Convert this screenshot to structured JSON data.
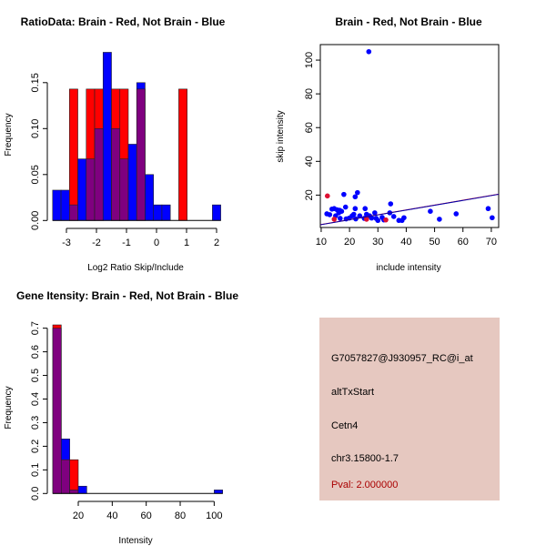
{
  "chart_data": [
    {
      "type": "histogram-overlay",
      "title": "RatioData: Brain - Red, Not Brain - Blue",
      "xlabel": "Log2 Ratio Skip/Include",
      "ylabel": "Frequency",
      "bin_start": -3.46,
      "bin_width": 0.28,
      "series": [
        {
          "name": "Not Brain",
          "color": "#0000ff",
          "values": [
            0.033,
            0.033,
            0.017,
            0.067,
            0.067,
            0.1,
            0.183,
            0.1,
            0.067,
            0.083,
            0.15,
            0.05,
            0.017,
            0.017,
            0,
            0,
            0,
            0,
            0,
            0.017
          ]
        },
        {
          "name": "Brain",
          "color": "#ff0000",
          "values": [
            0,
            0,
            0.143,
            0,
            0.143,
            0.143,
            0,
            0.143,
            0.143,
            0,
            0.143,
            0,
            0,
            0,
            0,
            0.143,
            0,
            0,
            0,
            0
          ]
        }
      ],
      "overlap_color": "#7f007f",
      "xticks": [
        "-3",
        "-2",
        "-1",
        "0",
        "1",
        "2"
      ],
      "xtick_values": [
        -3,
        -2,
        -1,
        0,
        1,
        2
      ],
      "yticks": [
        "0.00",
        "0.05",
        "0.10",
        "0.15"
      ],
      "ytick_values": [
        0,
        0.05,
        0.1,
        0.15
      ]
    },
    {
      "type": "scatter",
      "title": "Brain - Red, Not Brain - Blue",
      "xlabel": "include intensity",
      "ylabel": "skip intensity",
      "xlim": [
        9.7,
        72.6
      ],
      "ylim": [
        0.8,
        109.2
      ],
      "xticks": [
        "10",
        "20",
        "30",
        "40",
        "50",
        "60",
        "70"
      ],
      "xtick_values": [
        10,
        20,
        30,
        40,
        50,
        60,
        70
      ],
      "yticks": [
        "20",
        "40",
        "60",
        "80",
        "100"
      ],
      "ytick_values": [
        20,
        40,
        60,
        80,
        100
      ],
      "series": [
        {
          "name": "Not Brain",
          "color": "#0000ff",
          "points": [
            [
              26.8,
              105
            ],
            [
              18,
              20.4
            ],
            [
              22.8,
              21.5
            ],
            [
              22,
              19
            ],
            [
              18.6,
              12.9
            ],
            [
              34.5,
              14.8
            ],
            [
              25.5,
              12
            ],
            [
              22,
              12
            ],
            [
              12,
              8.9
            ],
            [
              13,
              8.4
            ],
            [
              13.8,
              11.7
            ],
            [
              14.6,
              12
            ],
            [
              15.6,
              11.3
            ],
            [
              16.5,
              11
            ],
            [
              17.2,
              10.4
            ],
            [
              15.1,
              7.7
            ],
            [
              16.2,
              9.5
            ],
            [
              16.7,
              6.2
            ],
            [
              18.8,
              5.9
            ],
            [
              19.9,
              6.4
            ],
            [
              20.9,
              7.7
            ],
            [
              21.5,
              8.6
            ],
            [
              22.2,
              5.9
            ],
            [
              23.6,
              7.7
            ],
            [
              25.2,
              6.2
            ],
            [
              26,
              8.6
            ],
            [
              27.1,
              7.7
            ],
            [
              27.8,
              6.4
            ],
            [
              28.9,
              9.5
            ],
            [
              29.4,
              6.2
            ],
            [
              30,
              5
            ],
            [
              31.5,
              6.8
            ],
            [
              32.1,
              5.3
            ],
            [
              34.2,
              9.5
            ],
            [
              35.6,
              7.3
            ],
            [
              37.4,
              5
            ],
            [
              38.5,
              5
            ],
            [
              39.2,
              6.6
            ],
            [
              48.5,
              10.4
            ],
            [
              51.7,
              5.7
            ],
            [
              57.6,
              8.9
            ],
            [
              68.9,
              12
            ],
            [
              70.3,
              6.6
            ]
          ]
        },
        {
          "name": "Brain",
          "color": "#dd1133",
          "points": [
            [
              12.2,
              19.5
            ],
            [
              14.6,
              5.7
            ],
            [
              26,
              5.7
            ],
            [
              32.8,
              5.3
            ]
          ]
        }
      ],
      "fit_lines": [
        {
          "color": "#ff0000",
          "intercept_at_10": 2.6,
          "slope": 0.287
        },
        {
          "color": "#0000aa",
          "intercept_at_10": 2.5,
          "slope": 0.287
        }
      ]
    },
    {
      "type": "histogram-overlay",
      "title": "Gene Itensity: Brain - Red, Not Brain - Blue",
      "xlabel": "Intensity",
      "ylabel": "Frequency",
      "bin_start": 5,
      "bin_width": 5,
      "series": [
        {
          "name": "Not Brain",
          "color": "#0000ff",
          "values": [
            0.7,
            0.231,
            0.015,
            0.031,
            0,
            0,
            0,
            0,
            0,
            0,
            0,
            0,
            0,
            0,
            0,
            0,
            0,
            0,
            0,
            0.015
          ]
        },
        {
          "name": "Brain",
          "color": "#ff0000",
          "values": [
            0.714,
            0.143,
            0.143,
            0,
            0,
            0,
            0,
            0,
            0,
            0,
            0,
            0,
            0,
            0,
            0,
            0,
            0,
            0,
            0,
            0
          ]
        }
      ],
      "overlap_color": "#7f007f",
      "xticks": [
        "20",
        "40",
        "60",
        "80",
        "100"
      ],
      "xtick_values": [
        20,
        40,
        60,
        80,
        100
      ],
      "yticks": [
        "0.0",
        "0.1",
        "0.2",
        "0.3",
        "0.4",
        "0.5",
        "0.6",
        "0.7"
      ],
      "ytick_values": [
        0,
        0.1,
        0.2,
        0.3,
        0.4,
        0.5,
        0.6,
        0.7
      ]
    }
  ],
  "info_panel": {
    "background": "#e6c8c0",
    "probe_id": "G7057827@J930957_RC@i_at",
    "event_type": "altTxStart",
    "gene": "Cetn4",
    "location": "chr3.15800-1.7",
    "pval": "Pval: 2.000000",
    "pval_color": "#aa0000"
  }
}
